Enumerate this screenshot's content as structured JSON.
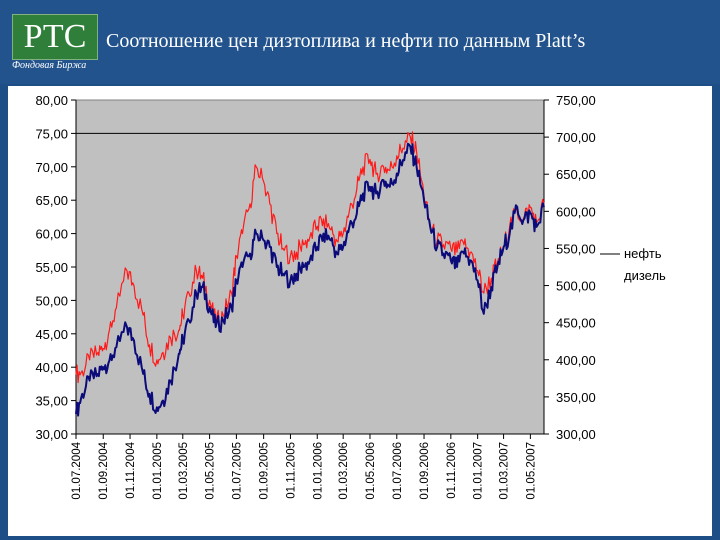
{
  "header": {
    "logo_text": "РТС",
    "logo_subtitle": "Фондовая Биржа",
    "title": "Соотношение цен дизтоплива и нефти по данным Platt’s"
  },
  "colors": {
    "header_bg": "#22538d",
    "plot_bg": "#c0c0c0",
    "oil_line": "#0b0b7a",
    "diesel_line": "#ff1a1a"
  },
  "chart_data": {
    "type": "line",
    "title": "Соотношение цен дизтоплива и нефти по данным Platt’s",
    "x_tick_labels": [
      "01.07.2004",
      "01.09.2004",
      "01.11.2004",
      "01.01.2005",
      "01.03.2005",
      "01.05.2005",
      "01.07.2005",
      "01.09.2005",
      "01.11.2005",
      "01.01.2006",
      "01.03.2006",
      "01.05.2006",
      "01.07.2006",
      "01.09.2006",
      "01.11.2006",
      "01.01.2007",
      "01.03.2007",
      "01.05.2007"
    ],
    "left_axis": {
      "ylim": [
        30,
        80
      ],
      "tick_labels": [
        "80,00",
        "75,00",
        "70,00",
        "65,00",
        "60,00",
        "55,00",
        "50,00",
        "45,00",
        "40,00",
        "35,00",
        "30,00"
      ]
    },
    "right_axis": {
      "ylim": [
        300,
        750
      ],
      "tick_labels": [
        "750,00",
        "700,00",
        "650,00",
        "600,00",
        "550,00",
        "500,00",
        "450,00",
        "400,00",
        "350,00",
        "300,00"
      ]
    },
    "legend_position": "right",
    "series": [
      {
        "name": "нефть",
        "axis": "left",
        "x": [
          "01.07.2004",
          "15.07.2004",
          "01.08.2004",
          "20.08.2004",
          "01.09.2004",
          "15.09.2004",
          "01.10.2004",
          "25.10.2004",
          "10.11.2004",
          "01.12.2004",
          "15.12.2004",
          "01.01.2005",
          "15.01.2005",
          "01.02.2005",
          "20.02.2005",
          "01.03.2005",
          "15.03.2005",
          "01.04.2005",
          "15.04.2005",
          "01.05.2005",
          "15.05.2005",
          "01.06.2005",
          "20.06.2005",
          "01.07.2005",
          "15.07.2005",
          "01.08.2005",
          "15.08.2005",
          "01.09.2005",
          "15.09.2005",
          "01.10.2005",
          "15.10.2005",
          "01.11.2005",
          "15.11.2005",
          "01.12.2005",
          "15.12.2005",
          "01.01.2006",
          "15.01.2006",
          "01.02.2006",
          "15.02.2006",
          "01.03.2006",
          "15.03.2006",
          "01.04.2006",
          "15.04.2006",
          "01.05.2006",
          "15.05.2006",
          "01.06.2006",
          "15.06.2006",
          "01.07.2006",
          "15.07.2006",
          "01.08.2006",
          "15.08.2006",
          "01.09.2006",
          "15.09.2006",
          "01.10.2006",
          "15.10.2006",
          "01.11.2006",
          "15.11.2006",
          "01.12.2006",
          "15.12.2006",
          "01.01.2007",
          "15.01.2007",
          "01.02.2007",
          "15.02.2007",
          "01.03.2007",
          "15.03.2007",
          "01.04.2007",
          "15.04.2007",
          "01.05.2007",
          "15.05.2007",
          "01.06.2007"
        ],
        "values": [
          33,
          36,
          38,
          39,
          40,
          41,
          43,
          46,
          44,
          39,
          36,
          34,
          35,
          38,
          42,
          44,
          47,
          51,
          52,
          49,
          46,
          47,
          49,
          53,
          55,
          57,
          60,
          59,
          58,
          55,
          54,
          53,
          54,
          55,
          56,
          58,
          60,
          59,
          57,
          58,
          61,
          63,
          66,
          67,
          66,
          68,
          67,
          69,
          71,
          73,
          70,
          65,
          61,
          58,
          57,
          56,
          55,
          57,
          56,
          53,
          48,
          52,
          55,
          58,
          60,
          64,
          62,
          63,
          61,
          64
        ]
      },
      {
        "name": "дизель",
        "axis": "right",
        "x": [
          "01.07.2004",
          "15.07.2004",
          "01.08.2004",
          "20.08.2004",
          "01.09.2004",
          "15.09.2004",
          "01.10.2004",
          "25.10.2004",
          "10.11.2004",
          "01.12.2004",
          "15.12.2004",
          "01.01.2005",
          "15.01.2005",
          "01.02.2005",
          "20.02.2005",
          "01.03.2005",
          "15.03.2005",
          "01.04.2005",
          "15.04.2005",
          "01.05.2005",
          "15.05.2005",
          "01.06.2005",
          "20.06.2005",
          "01.07.2005",
          "15.07.2005",
          "01.08.2005",
          "15.08.2005",
          "01.09.2005",
          "15.09.2005",
          "01.10.2005",
          "15.10.2005",
          "01.11.2005",
          "15.11.2005",
          "01.12.2005",
          "15.12.2005",
          "01.01.2006",
          "15.01.2006",
          "01.02.2006",
          "15.02.2006",
          "01.03.2006",
          "15.03.2006",
          "01.04.2006",
          "15.04.2006",
          "01.05.2006",
          "15.05.2006",
          "01.06.2006",
          "15.06.2006",
          "01.07.2006",
          "15.07.2006",
          "01.08.2006",
          "15.08.2006",
          "01.09.2006",
          "15.09.2006",
          "01.10.2006",
          "15.10.2006",
          "01.11.2006",
          "15.11.2006",
          "01.12.2006",
          "15.12.2006",
          "01.01.2007",
          "15.01.2007",
          "01.02.2007",
          "15.02.2007",
          "01.03.2007",
          "15.03.2007",
          "01.04.2007",
          "15.04.2007",
          "01.05.2007",
          "15.05.2007",
          "01.06.2007"
        ],
        "values": [
          380,
          385,
          400,
          410,
          415,
          440,
          470,
          520,
          500,
          460,
          420,
          400,
          410,
          430,
          440,
          460,
          490,
          520,
          510,
          480,
          450,
          460,
          490,
          540,
          570,
          610,
          660,
          640,
          610,
          570,
          550,
          540,
          545,
          555,
          565,
          580,
          590,
          575,
          560,
          570,
          600,
          630,
          660,
          670,
          650,
          660,
          655,
          675,
          685,
          700,
          680,
          620,
          580,
          560,
          555,
          550,
          545,
          555,
          545,
          520,
          490,
          510,
          530,
          550,
          580,
          600,
          590,
          605,
          585,
          610
        ]
      }
    ]
  }
}
